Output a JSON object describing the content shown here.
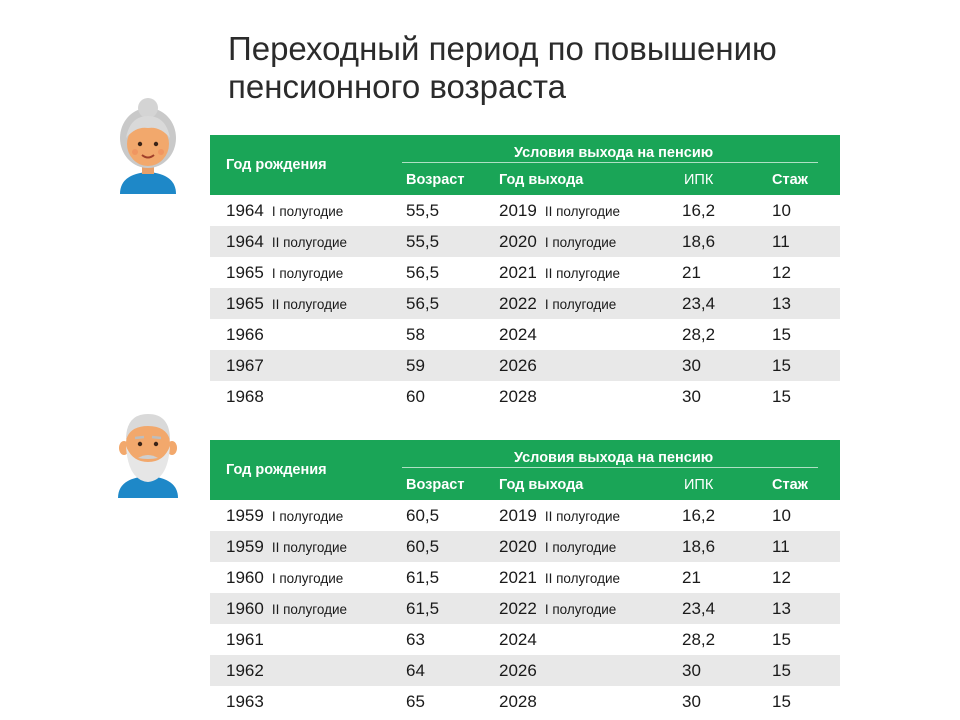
{
  "title": {
    "line1": "Переходный период по повышению",
    "line2": "пенсионного возраста"
  },
  "tables": [
    {
      "avatar": "grandmother-icon",
      "header": {
        "birth_year": "Год рождения",
        "conditions": "Условия выхода на пенсию",
        "age": "Возраст",
        "exit_year": "Год выхода",
        "ipk": "ИПК",
        "stazh": "Стаж"
      },
      "rows": [
        {
          "year": "1964",
          "half": "I полугодие",
          "age": "55,5",
          "exit": "2019",
          "exit_half": "II полугодие",
          "ipk": "16,2",
          "stazh": "10"
        },
        {
          "year": "1964",
          "half": "II полугодие",
          "age": "55,5",
          "exit": "2020",
          "exit_half": "I полугодие",
          "ipk": "18,6",
          "stazh": "11"
        },
        {
          "year": "1965",
          "half": "I полугодие",
          "age": "56,5",
          "exit": "2021",
          "exit_half": "II полугодие",
          "ipk": "21",
          "stazh": "12"
        },
        {
          "year": "1965",
          "half": "II полугодие",
          "age": "56,5",
          "exit": "2022",
          "exit_half": "I полугодие",
          "ipk": "23,4",
          "stazh": "13"
        },
        {
          "year": "1966",
          "half": "",
          "age": "58",
          "exit": "2024",
          "exit_half": "",
          "ipk": "28,2",
          "stazh": "15"
        },
        {
          "year": "1967",
          "half": "",
          "age": "59",
          "exit": "2026",
          "exit_half": "",
          "ipk": "30",
          "stazh": "15"
        },
        {
          "year": "1968",
          "half": "",
          "age": "60",
          "exit": "2028",
          "exit_half": "",
          "ipk": "30",
          "stazh": "15"
        }
      ]
    },
    {
      "avatar": "grandfather-icon",
      "header": {
        "birth_year": "Год рождения",
        "conditions": "Условия выхода на пенсию",
        "age": "Возраст",
        "exit_year": "Год выхода",
        "ipk": "ИПК",
        "stazh": "Стаж"
      },
      "rows": [
        {
          "year": "1959",
          "half": "I полугодие",
          "age": "60,5",
          "exit": "2019",
          "exit_half": "II полугодие",
          "ipk": "16,2",
          "stazh": "10"
        },
        {
          "year": "1959",
          "half": "II полугодие",
          "age": "60,5",
          "exit": "2020",
          "exit_half": "I полугодие",
          "ipk": "18,6",
          "stazh": "11"
        },
        {
          "year": "1960",
          "half": "I полугодие",
          "age": "61,5",
          "exit": "2021",
          "exit_half": "II полугодие",
          "ipk": "21",
          "stazh": "12"
        },
        {
          "year": "1960",
          "half": "II полугодие",
          "age": "61,5",
          "exit": "2022",
          "exit_half": "I полугодие",
          "ipk": "23,4",
          "stazh": "13"
        },
        {
          "year": "1961",
          "half": "",
          "age": "63",
          "exit": "2024",
          "exit_half": "",
          "ipk": "28,2",
          "stazh": "15"
        },
        {
          "year": "1962",
          "half": "",
          "age": "64",
          "exit": "2026",
          "exit_half": "",
          "ipk": "30",
          "stazh": "15"
        },
        {
          "year": "1963",
          "half": "",
          "age": "65",
          "exit": "2028",
          "exit_half": "",
          "ipk": "30",
          "stazh": "15"
        }
      ]
    }
  ]
}
